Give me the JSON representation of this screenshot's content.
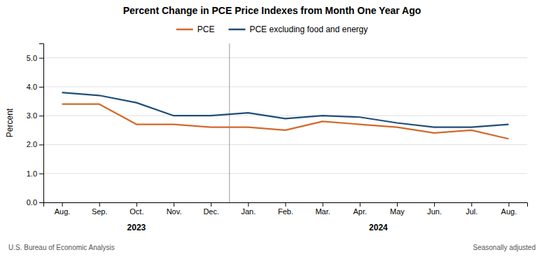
{
  "chart_data": {
    "type": "line",
    "title": "Percent Change in PCE Price Indexes from Month One Year Ago",
    "y_label": "Percent",
    "categories": [
      "Aug.",
      "Sep.",
      "Oct.",
      "Nov.",
      "Dec.",
      "Jan.",
      "Feb.",
      "Mar.",
      "Apr.",
      "May",
      "Jun.",
      "Jul.",
      "Aug."
    ],
    "series": [
      {
        "name": "PCE",
        "color": "#D4682A",
        "values": [
          3.4,
          3.4,
          2.7,
          2.7,
          2.6,
          2.6,
          2.5,
          2.8,
          2.7,
          2.6,
          2.4,
          2.5,
          2.2
        ]
      },
      {
        "name": "PCE excluding food and energy",
        "color": "#1F4E79",
        "values": [
          3.8,
          3.7,
          3.45,
          3.0,
          3.0,
          3.1,
          2.9,
          3.0,
          2.95,
          2.75,
          2.6,
          2.6,
          2.7
        ]
      }
    ],
    "ylim": [
      0.0,
      5.5
    ],
    "yticks": [
      {
        "value": 0.0,
        "label": "0.0"
      },
      {
        "value": 1.0,
        "label": "1.0"
      },
      {
        "value": 2.0,
        "label": "2.0"
      },
      {
        "value": 3.0,
        "label": "3.0"
      },
      {
        "value": 4.0,
        "label": "4.0"
      },
      {
        "value": 5.0,
        "label": "5.0"
      }
    ],
    "grid": true,
    "legend": "top",
    "annotations": [
      "2023",
      "2024",
      "U.S. Bureau of Economic Analysis",
      "Seasonally adjusted"
    ]
  }
}
